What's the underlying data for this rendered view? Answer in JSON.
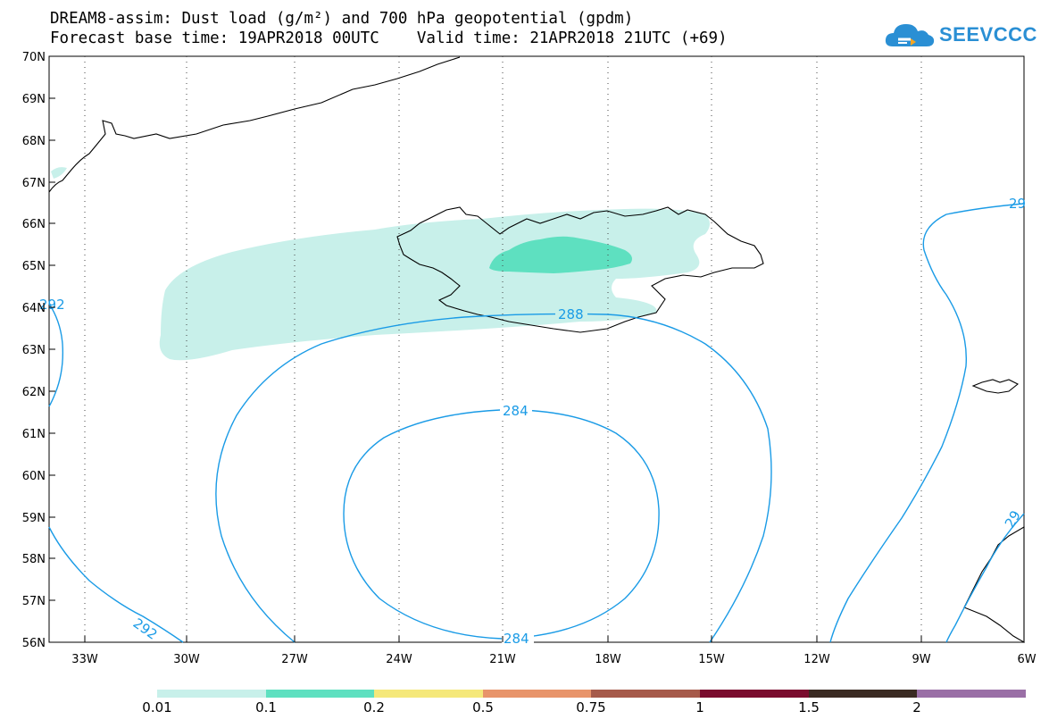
{
  "title": {
    "line1": "DREAM8-assim: Dust load (g/m²) and 700 hPa geopotential (gpdm)",
    "line2": "Forecast base time: 19APR2018 00UTC    Valid time: 21APR2018 21UTC (+69)"
  },
  "logo": {
    "text": "SEEVCCC",
    "icon": "cloud-icon"
  },
  "map": {
    "lat_labels": [
      "70N",
      "69N",
      "68N",
      "67N",
      "66N",
      "65N",
      "64N",
      "63N",
      "62N",
      "61N",
      "60N",
      "59N",
      "58N",
      "57N",
      "56N"
    ],
    "lon_labels": [
      "33W",
      "30W",
      "27W",
      "24W",
      "21W",
      "18W",
      "15W",
      "12W",
      "9W",
      "6W"
    ],
    "contour_labels": [
      "288",
      "284",
      "284",
      "292",
      "292",
      "29",
      "29"
    ]
  },
  "colorbar": {
    "labels": [
      "0.01",
      "0.1",
      "0.2",
      "0.5",
      "0.75",
      "1",
      "1.5",
      "2"
    ],
    "colors": [
      "#c8f0ea",
      "#5ee0c0",
      "#f5e87a",
      "#e8946a",
      "#a65a4a",
      "#7a0c2e",
      "#3a2a22",
      "#9a6fa6"
    ]
  },
  "colors": {
    "contour": "#1a9be6",
    "dust_low": "#c8f0ea",
    "dust_mid": "#5ee0c0",
    "coast": "#000000"
  }
}
